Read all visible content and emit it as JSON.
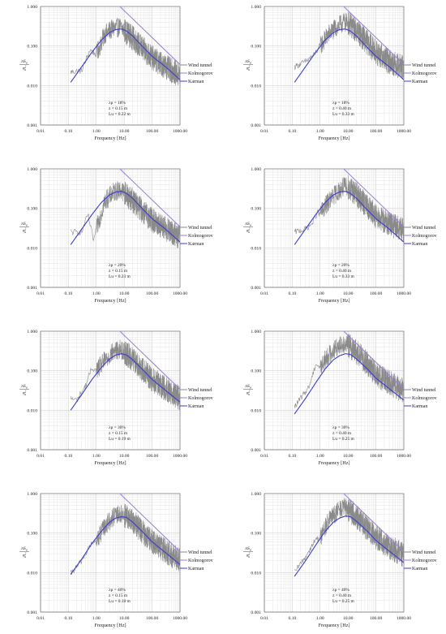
{
  "legend": [
    "Wind tunnel",
    "Kolmogorov",
    "Karman"
  ],
  "colors": {
    "wind_tunnel": "#8a8a8a",
    "kolmogorov": "#9b7fcf",
    "karman": "#3c3ccf",
    "grid": "#dcdcdc"
  },
  "chart_data": [
    {
      "type": "line",
      "xscale": "log",
      "yscale": "log",
      "xlim": [
        0.01,
        1000
      ],
      "ylim": [
        0.001,
        1
      ],
      "xlabel": "Frequency [Hz]",
      "ylabel": "nS_u/σ_u^2",
      "xticks": [
        "0.01",
        "0.10",
        "1.00",
        "10.00",
        "100.00",
        "1000.00"
      ],
      "yticks": [
        "1.000",
        "0.100",
        "0.010",
        "0.001"
      ],
      "annotation": [
        "λp = 18%",
        "z = 0.15 m",
        "Lu = 0.22 m"
      ],
      "series": [
        {
          "name": "Wind tunnel",
          "x": [
            0.12,
            0.3,
            0.6,
            1,
            2,
            4,
            7,
            10,
            20,
            50,
            100,
            300,
            1000
          ],
          "y": [
            0.022,
            0.024,
            0.08,
            0.06,
            0.2,
            0.28,
            0.3,
            0.25,
            0.16,
            0.08,
            0.05,
            0.03,
            0.018
          ]
        },
        {
          "name": "Kolmogorov",
          "x": [
            7,
            1000
          ],
          "y": [
            1.0,
            0.034
          ]
        },
        {
          "name": "Karman",
          "x": [
            0.12,
            0.3,
            0.7,
            1.5,
            3,
            5,
            8,
            12,
            20,
            50,
            100,
            300,
            1000
          ],
          "y": [
            0.012,
            0.03,
            0.07,
            0.14,
            0.22,
            0.26,
            0.27,
            0.24,
            0.18,
            0.09,
            0.055,
            0.03,
            0.014
          ]
        }
      ]
    },
    {
      "type": "line",
      "xscale": "log",
      "yscale": "log",
      "xlim": [
        0.01,
        1000
      ],
      "ylim": [
        0.001,
        1
      ],
      "xlabel": "Frequency [Hz]",
      "ylabel": "nS_u/σ_u^2",
      "xticks": [
        "0.01",
        "0.10",
        "1.00",
        "10.00",
        "100.00",
        "1000.00"
      ],
      "yticks": [
        "1.000",
        "0.100",
        "0.010",
        "0.001"
      ],
      "annotation": [
        "λp = 18%",
        "z = 0.40 m",
        "Lu = 0.33 m"
      ],
      "series": [
        {
          "name": "Wind tunnel",
          "x": [
            0.12,
            0.3,
            0.6,
            1,
            2,
            4,
            7,
            10,
            20,
            50,
            100,
            300,
            1000
          ],
          "y": [
            0.03,
            0.04,
            0.06,
            0.1,
            0.2,
            0.3,
            0.4,
            0.38,
            0.25,
            0.12,
            0.07,
            0.04,
            0.028
          ]
        },
        {
          "name": "Kolmogorov",
          "x": [
            7,
            1000
          ],
          "y": [
            1.0,
            0.034
          ]
        },
        {
          "name": "Karman",
          "x": [
            0.12,
            0.3,
            0.7,
            1.5,
            3,
            5,
            8,
            12,
            20,
            50,
            100,
            300,
            1000
          ],
          "y": [
            0.012,
            0.03,
            0.07,
            0.14,
            0.22,
            0.26,
            0.27,
            0.24,
            0.18,
            0.09,
            0.055,
            0.03,
            0.014
          ]
        }
      ]
    },
    {
      "type": "line",
      "xscale": "log",
      "yscale": "log",
      "xlim": [
        0.01,
        1000
      ],
      "ylim": [
        0.001,
        1
      ],
      "xlabel": "Frequency [Hz]",
      "ylabel": "nS_u/σ_u^2",
      "xticks": [
        "0.01",
        "0.10",
        "1.00",
        "10.00",
        "100.00",
        "1000.00"
      ],
      "yticks": [
        "1.000",
        "0.100",
        "0.010",
        "0.001"
      ],
      "annotation": [
        "λp = 20%",
        "z = 0.15 m",
        "Lu = 0.23 m"
      ],
      "series": [
        {
          "name": "Wind tunnel",
          "x": [
            0.12,
            0.3,
            0.5,
            0.8,
            1,
            2,
            4,
            7,
            10,
            20,
            50,
            100,
            300,
            1000
          ],
          "y": [
            0.025,
            0.025,
            0.07,
            0.015,
            0.03,
            0.15,
            0.25,
            0.3,
            0.25,
            0.16,
            0.08,
            0.05,
            0.03,
            0.018
          ]
        },
        {
          "name": "Kolmogorov",
          "x": [
            7,
            1000
          ],
          "y": [
            1.0,
            0.034
          ]
        },
        {
          "name": "Karman",
          "x": [
            0.12,
            0.3,
            0.7,
            1.5,
            3,
            5,
            8,
            12,
            20,
            50,
            100,
            300,
            1000
          ],
          "y": [
            0.012,
            0.03,
            0.07,
            0.14,
            0.22,
            0.26,
            0.27,
            0.24,
            0.18,
            0.09,
            0.055,
            0.03,
            0.014
          ]
        }
      ]
    },
    {
      "type": "line",
      "xscale": "log",
      "yscale": "log",
      "xlim": [
        0.01,
        1000
      ],
      "ylim": [
        0.001,
        1
      ],
      "xlabel": "Frequency [Hz]",
      "ylabel": "nS_u/σ_u^2",
      "xticks": [
        "0.01",
        "0.10",
        "1.00",
        "10.00",
        "100.00",
        "1000.00"
      ],
      "yticks": [
        "1.000",
        "0.100",
        "0.010",
        "0.001"
      ],
      "annotation": [
        "λp = 20%",
        "z = 0.40 m",
        "Lu = 0.33 m"
      ],
      "series": [
        {
          "name": "Wind tunnel",
          "x": [
            0.12,
            0.3,
            0.5,
            0.8,
            1,
            2,
            4,
            7,
            10,
            20,
            50,
            100,
            300,
            1000
          ],
          "y": [
            0.025,
            0.03,
            0.04,
            0.08,
            0.07,
            0.15,
            0.25,
            0.35,
            0.35,
            0.22,
            0.11,
            0.065,
            0.04,
            0.028
          ]
        },
        {
          "name": "Kolmogorov",
          "x": [
            7,
            1000
          ],
          "y": [
            1.0,
            0.034
          ]
        },
        {
          "name": "Karman",
          "x": [
            0.12,
            0.3,
            0.7,
            1.5,
            3,
            5,
            8,
            12,
            20,
            50,
            100,
            300,
            1000
          ],
          "y": [
            0.012,
            0.03,
            0.07,
            0.14,
            0.22,
            0.26,
            0.27,
            0.24,
            0.18,
            0.09,
            0.055,
            0.03,
            0.014
          ]
        }
      ]
    },
    {
      "type": "line",
      "xscale": "log",
      "yscale": "log",
      "xlim": [
        0.01,
        1000
      ],
      "ylim": [
        0.001,
        1
      ],
      "xlabel": "Frequency [Hz]",
      "ylabel": "nS_u/σ_u^2",
      "xticks": [
        "0.01",
        "0.10",
        "1.00",
        "10.00",
        "100.00",
        "1000.00"
      ],
      "yticks": [
        "1.000",
        "0.100",
        "0.010",
        "0.001"
      ],
      "annotation": [
        "λp = 30%",
        "z = 0.15 m",
        "Lu = 0.19 m"
      ],
      "series": [
        {
          "name": "Wind tunnel",
          "x": [
            0.12,
            0.2,
            0.4,
            0.7,
            1,
            2,
            4,
            7,
            10,
            20,
            50,
            100,
            300,
            1000
          ],
          "y": [
            0.02,
            0.018,
            0.04,
            0.12,
            0.1,
            0.18,
            0.3,
            0.35,
            0.3,
            0.2,
            0.1,
            0.06,
            0.035,
            0.02
          ]
        },
        {
          "name": "Kolmogorov",
          "x": [
            7,
            1000
          ],
          "y": [
            1.0,
            0.034
          ]
        },
        {
          "name": "Karman",
          "x": [
            0.12,
            0.3,
            0.7,
            1.5,
            3,
            5,
            8,
            12,
            20,
            50,
            100,
            300,
            1000
          ],
          "y": [
            0.01,
            0.025,
            0.06,
            0.12,
            0.2,
            0.25,
            0.27,
            0.25,
            0.19,
            0.1,
            0.06,
            0.032,
            0.016
          ]
        }
      ]
    },
    {
      "type": "line",
      "xscale": "log",
      "yscale": "log",
      "xlim": [
        0.01,
        1000
      ],
      "ylim": [
        0.001,
        1
      ],
      "xlabel": "Frequency [Hz]",
      "ylabel": "nS_u/σ_u^2",
      "xticks": [
        "0.01",
        "0.10",
        "1.00",
        "10.00",
        "100.00",
        "1000.00"
      ],
      "yticks": [
        "1.000",
        "0.100",
        "0.010",
        "0.001"
      ],
      "annotation": [
        "λp = 30%",
        "z = 0.40 m",
        "Lu = 0.25 m"
      ],
      "series": [
        {
          "name": "Wind tunnel",
          "x": [
            0.12,
            0.2,
            0.4,
            0.7,
            1,
            2,
            4,
            7,
            10,
            20,
            50,
            100,
            300,
            1000
          ],
          "y": [
            0.012,
            0.02,
            0.04,
            0.15,
            0.12,
            0.25,
            0.4,
            0.5,
            0.45,
            0.3,
            0.15,
            0.08,
            0.05,
            0.03
          ]
        },
        {
          "name": "Kolmogorov",
          "x": [
            7,
            1000
          ],
          "y": [
            1.0,
            0.034
          ]
        },
        {
          "name": "Karman",
          "x": [
            0.12,
            0.3,
            0.7,
            1.5,
            3,
            5,
            8,
            12,
            20,
            50,
            100,
            300,
            1000
          ],
          "y": [
            0.008,
            0.02,
            0.05,
            0.11,
            0.19,
            0.24,
            0.27,
            0.26,
            0.2,
            0.11,
            0.065,
            0.035,
            0.018
          ]
        }
      ]
    },
    {
      "type": "line",
      "xscale": "log",
      "yscale": "log",
      "xlim": [
        0.01,
        1000
      ],
      "ylim": [
        0.001,
        1
      ],
      "xlabel": "Frequency [Hz]",
      "ylabel": "nS_u/σ_u^2",
      "xticks": [
        "0.01",
        "0.10",
        "1.00",
        "10.00",
        "100.00",
        "1000.00"
      ],
      "yticks": [
        "1.000",
        "0.100",
        "0.010",
        "0.001"
      ],
      "annotation": [
        "λp = 40%",
        "z = 0.15 m",
        "Lu = 0.18 m"
      ],
      "series": [
        {
          "name": "Wind tunnel",
          "x": [
            0.12,
            0.3,
            0.6,
            1,
            2,
            4,
            7,
            10,
            20,
            50,
            100,
            300,
            1000
          ],
          "y": [
            0.009,
            0.02,
            0.05,
            0.06,
            0.15,
            0.25,
            0.3,
            0.28,
            0.2,
            0.1,
            0.06,
            0.035,
            0.02
          ]
        },
        {
          "name": "Kolmogorov",
          "x": [
            7,
            1000
          ],
          "y": [
            1.0,
            0.034
          ]
        },
        {
          "name": "Karman",
          "x": [
            0.12,
            0.3,
            0.7,
            1.5,
            3,
            5,
            8,
            12,
            20,
            50,
            100,
            300,
            1000
          ],
          "y": [
            0.009,
            0.022,
            0.055,
            0.11,
            0.19,
            0.24,
            0.26,
            0.25,
            0.19,
            0.1,
            0.06,
            0.032,
            0.016
          ]
        }
      ]
    },
    {
      "type": "line",
      "xscale": "log",
      "yscale": "log",
      "xlim": [
        0.01,
        1000
      ],
      "ylim": [
        0.001,
        1
      ],
      "xlabel": "Frequency [Hz]",
      "ylabel": "nS_u/σ_u^2",
      "xticks": [
        "0.01",
        "0.10",
        "1.00",
        "10.00",
        "100.00",
        "1000.00"
      ],
      "yticks": [
        "1.000",
        "0.100",
        "0.010",
        "0.001"
      ],
      "annotation": [
        "λp = 40%",
        "z = 0.40 m",
        "Lu = 0.25 m"
      ],
      "series": [
        {
          "name": "Wind tunnel",
          "x": [
            0.12,
            0.3,
            0.6,
            1,
            2,
            4,
            7,
            10,
            20,
            50,
            100,
            300,
            1000
          ],
          "y": [
            0.01,
            0.025,
            0.06,
            0.08,
            0.2,
            0.35,
            0.45,
            0.4,
            0.26,
            0.13,
            0.08,
            0.045,
            0.028
          ]
        },
        {
          "name": "Kolmogorov",
          "x": [
            7,
            1000
          ],
          "y": [
            1.0,
            0.034
          ]
        },
        {
          "name": "Karman",
          "x": [
            0.12,
            0.3,
            0.7,
            1.5,
            3,
            5,
            8,
            12,
            20,
            50,
            100,
            300,
            1000
          ],
          "y": [
            0.008,
            0.02,
            0.05,
            0.11,
            0.19,
            0.24,
            0.27,
            0.26,
            0.2,
            0.11,
            0.065,
            0.035,
            0.018
          ]
        }
      ]
    }
  ]
}
